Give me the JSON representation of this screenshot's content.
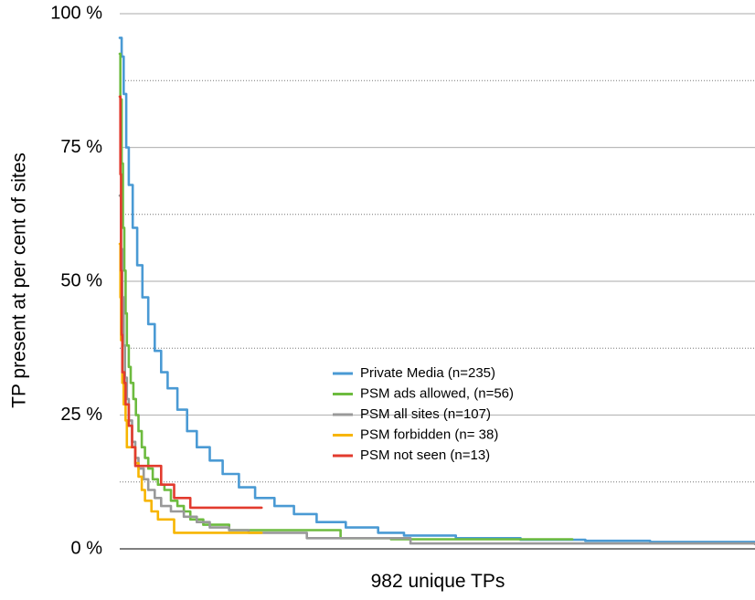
{
  "chart_data": {
    "type": "line",
    "title": "",
    "xlabel": "982 unique TPs",
    "ylabel": "TP present at per cent of sites",
    "xlim": [
      1,
      982
    ],
    "ylim": [
      0,
      100
    ],
    "y_ticks": [
      {
        "value": 0,
        "label": "0 %"
      },
      {
        "value": 25,
        "label": "25 %"
      },
      {
        "value": 50,
        "label": "50 %"
      },
      {
        "value": 75,
        "label": "75 %"
      },
      {
        "value": 100,
        "label": "100 %"
      }
    ],
    "minor_gridlines": [
      12.5,
      37.5,
      62.5,
      87.5
    ],
    "grid": true,
    "legend_position": "center-right",
    "series": [
      {
        "name": "Private Media (n=235)",
        "color": "#4a9ad4",
        "points": [
          [
            1,
            95.5
          ],
          [
            4,
            92
          ],
          [
            7,
            85
          ],
          [
            11,
            75
          ],
          [
            15,
            68
          ],
          [
            21,
            60
          ],
          [
            28,
            53
          ],
          [
            36,
            47
          ],
          [
            45,
            42
          ],
          [
            55,
            37
          ],
          [
            65,
            33
          ],
          [
            75,
            30
          ],
          [
            90,
            26
          ],
          [
            105,
            22
          ],
          [
            120,
            19
          ],
          [
            140,
            16.5
          ],
          [
            160,
            14
          ],
          [
            185,
            11.5
          ],
          [
            210,
            9.5
          ],
          [
            240,
            8
          ],
          [
            270,
            6.5
          ],
          [
            305,
            5
          ],
          [
            350,
            4
          ],
          [
            400,
            3
          ],
          [
            440,
            2.5
          ],
          [
            520,
            2
          ],
          [
            620,
            1.7
          ],
          [
            720,
            1.5
          ],
          [
            820,
            1.3
          ],
          [
            982,
            1.3
          ]
        ]
      },
      {
        "name": "PSM ads allowed, (n=56)",
        "color": "#6dbb3f",
        "points": [
          [
            1,
            92.5
          ],
          [
            2,
            84
          ],
          [
            4,
            72
          ],
          [
            6,
            60
          ],
          [
            8,
            52
          ],
          [
            10,
            44
          ],
          [
            12,
            38
          ],
          [
            15,
            34
          ],
          [
            18,
            31
          ],
          [
            22,
            28
          ],
          [
            26,
            25
          ],
          [
            30,
            22
          ],
          [
            35,
            19
          ],
          [
            40,
            17
          ],
          [
            45,
            15
          ],
          [
            52,
            13
          ],
          [
            60,
            12
          ],
          [
            70,
            11
          ],
          [
            80,
            9
          ],
          [
            90,
            8
          ],
          [
            100,
            7
          ],
          [
            110,
            5.5
          ],
          [
            130,
            4.5
          ],
          [
            170,
            3.5
          ],
          [
            220,
            3.5
          ],
          [
            260,
            3.5
          ],
          [
            342,
            2
          ],
          [
            420,
            1.8
          ],
          [
            600,
            1.8
          ],
          [
            700,
            1.8
          ]
        ]
      },
      {
        "name": "PSM all sites (n=107)",
        "color": "#999999",
        "points": [
          [
            1,
            66
          ],
          [
            3,
            56
          ],
          [
            5,
            47
          ],
          [
            7,
            38
          ],
          [
            9,
            32
          ],
          [
            12,
            28
          ],
          [
            15,
            24
          ],
          [
            20,
            20
          ],
          [
            25,
            17
          ],
          [
            30,
            15
          ],
          [
            38,
            13
          ],
          [
            45,
            11
          ],
          [
            55,
            9.5
          ],
          [
            65,
            8
          ],
          [
            80,
            7
          ],
          [
            100,
            6
          ],
          [
            120,
            5
          ],
          [
            140,
            4
          ],
          [
            170,
            3.5
          ],
          [
            200,
            3
          ],
          [
            260,
            3
          ],
          [
            290,
            2
          ],
          [
            350,
            2
          ],
          [
            450,
            1
          ],
          [
            600,
            1
          ],
          [
            700,
            1
          ],
          [
            982,
            0.9
          ]
        ]
      },
      {
        "name": "PSM forbidden (n= 38)",
        "color": "#f7b500",
        "points": [
          [
            1,
            57
          ],
          [
            2,
            47
          ],
          [
            3,
            39
          ],
          [
            5,
            31
          ],
          [
            7,
            27
          ],
          [
            10,
            24
          ],
          [
            12,
            19
          ],
          [
            20,
            19
          ],
          [
            25,
            16
          ],
          [
            30,
            13.5
          ],
          [
            35,
            11
          ],
          [
            40,
            9
          ],
          [
            50,
            7
          ],
          [
            60,
            5.5
          ],
          [
            80,
            5.5
          ],
          [
            85,
            3
          ],
          [
            140,
            3
          ],
          [
            180,
            3
          ],
          [
            220,
            3
          ]
        ]
      },
      {
        "name": "PSM not seen (n=13)",
        "color": "#e23b2e",
        "points": [
          [
            1,
            84.5
          ],
          [
            2,
            70
          ],
          [
            3,
            52
          ],
          [
            4,
            40
          ],
          [
            5,
            33
          ],
          [
            8,
            31
          ],
          [
            10,
            27
          ],
          [
            15,
            23
          ],
          [
            20,
            19
          ],
          [
            25,
            15.5
          ],
          [
            60,
            15.5
          ],
          [
            65,
            12
          ],
          [
            80,
            12
          ],
          [
            85,
            9.5
          ],
          [
            100,
            9.5
          ],
          [
            110,
            7.7
          ],
          [
            200,
            7.7
          ],
          [
            220,
            7.7
          ]
        ]
      }
    ]
  }
}
